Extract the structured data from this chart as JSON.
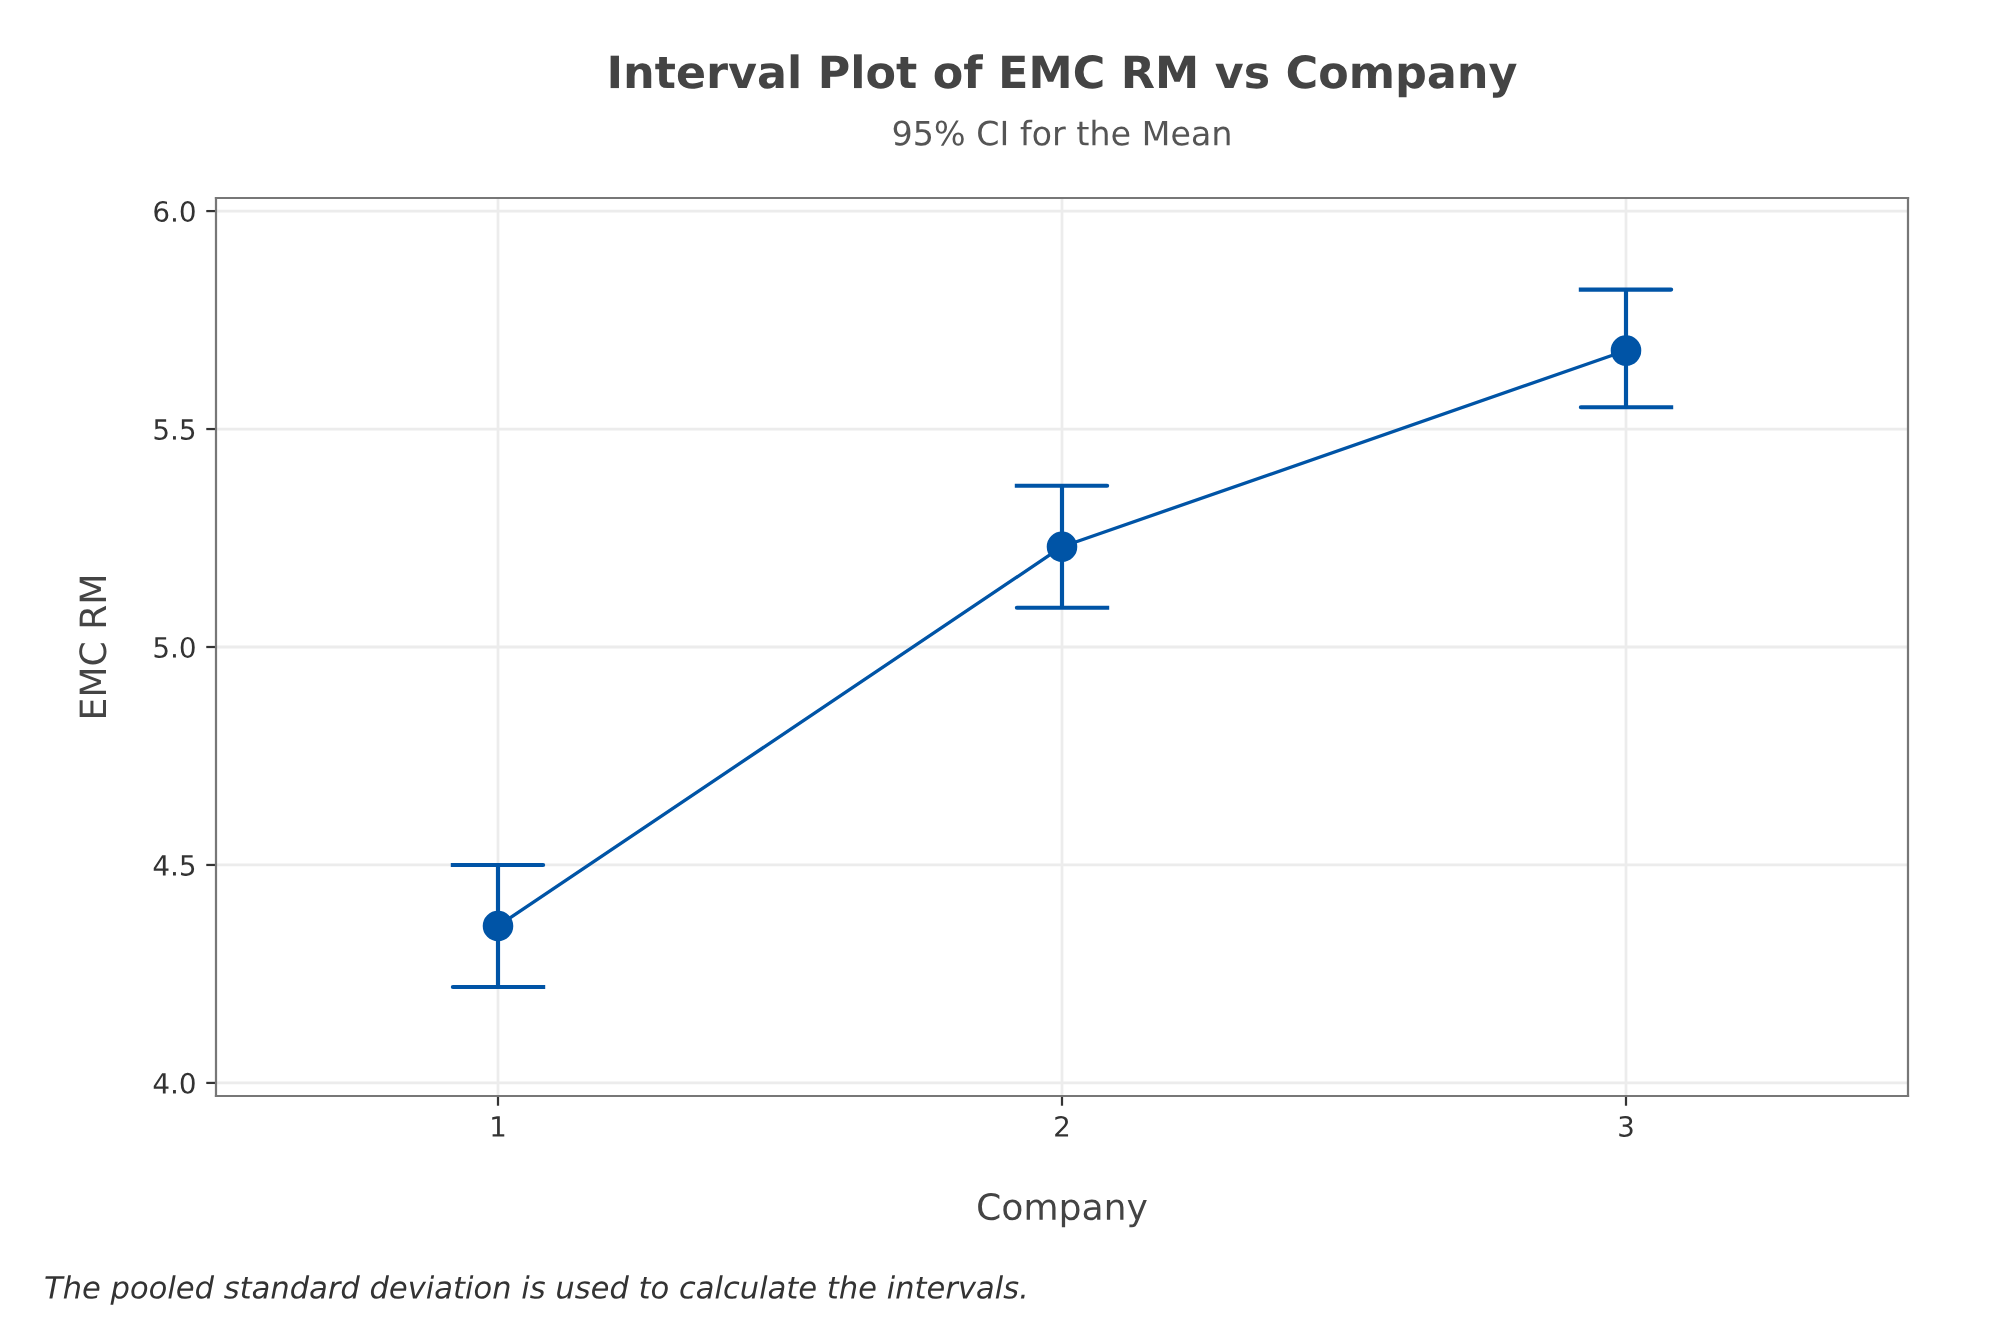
{
  "chart_data": {
    "type": "line",
    "title": "Interval Plot of EMC RM vs Company",
    "subtitle": "95% CI for the Mean",
    "xlabel": "Company",
    "ylabel": "EMC RM",
    "categories": [
      "1",
      "2",
      "3"
    ],
    "color": "#0054a6",
    "values": [
      4.36,
      5.23,
      5.68
    ],
    "errors": [
      [
        4.22,
        4.5
      ],
      [
        5.09,
        5.37
      ],
      [
        5.55,
        5.82
      ]
    ],
    "ylim": [
      3.97,
      6.03
    ],
    "yticks": [
      {
        "value": 4.0,
        "label": "4.0"
      },
      {
        "value": 4.5,
        "label": "4.5"
      },
      {
        "value": 5.0,
        "label": "5.0"
      },
      {
        "value": 5.5,
        "label": "5.5"
      },
      {
        "value": 6.0,
        "label": "6.0"
      }
    ],
    "grid": true,
    "marker": "circle",
    "line_style": "solid",
    "annotations": [
      "The pooled standard deviation is used to calculate the intervals."
    ]
  }
}
